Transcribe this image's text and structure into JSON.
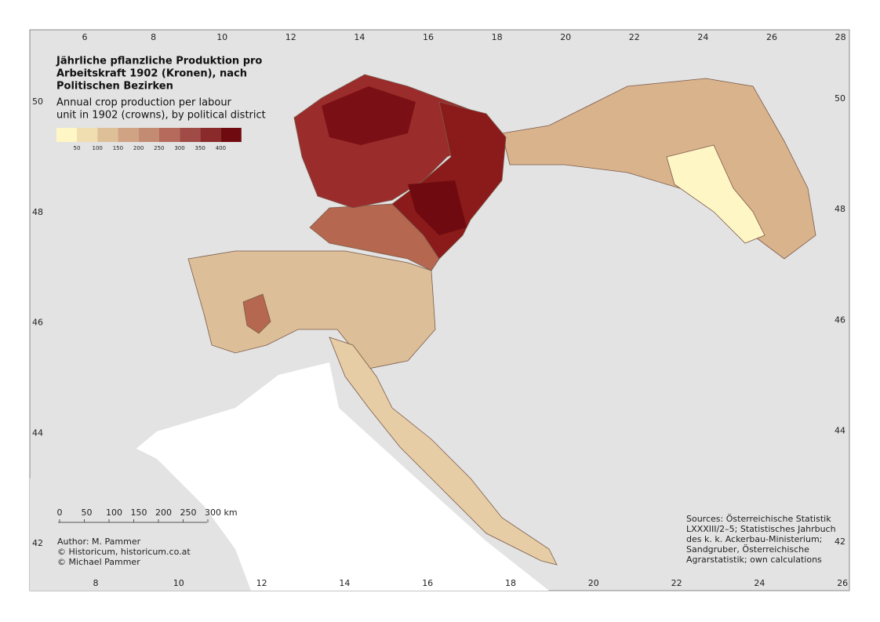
{
  "title_lines": [
    "Jährliche pflanzliche Produktion pro",
    "Arbeitskraft 1902 (Kronen), nach",
    "Politischen Bezirken"
  ],
  "subtitle_lines": [
    "Annual crop production per labour",
    "unit in 1902 (crowns), by political district"
  ],
  "legend": {
    "colors": [
      "#fff6c5",
      "#f0ddb0",
      "#ddbf98",
      "#cfa384",
      "#c38b72",
      "#b56a5c",
      "#a04b46",
      "#8a2a2b",
      "#6f0b10"
    ],
    "labels": [
      50,
      100,
      150,
      200,
      250,
      300,
      350,
      400
    ]
  },
  "top_ticks": [
    6,
    8,
    10,
    12,
    14,
    16,
    18,
    20,
    22,
    24,
    26,
    28
  ],
  "bottom_ticks": [
    8,
    10,
    12,
    14,
    16,
    18,
    20,
    22,
    24,
    26
  ],
  "left_ticks": [
    50,
    48,
    46,
    44,
    42
  ],
  "right_ticks": [
    50,
    48,
    46,
    44,
    42
  ],
  "scale_labels": [
    "0",
    "50",
    "100",
    "150",
    "200",
    "250",
    "300 km"
  ],
  "author_lines": [
    "Author: M. Pammer",
    "© Historicum, historicum.co.at",
    "© Michael Pammer"
  ],
  "sources_lines": [
    "Sources: Österreichische Statistik",
    "LXXXIII/2–5; Statistisches Jahrbuch",
    "des k. k. Ackerbau-Ministerium;",
    "Sandgruber, Österreichische",
    "Agrarstatistik; own calculations"
  ]
}
